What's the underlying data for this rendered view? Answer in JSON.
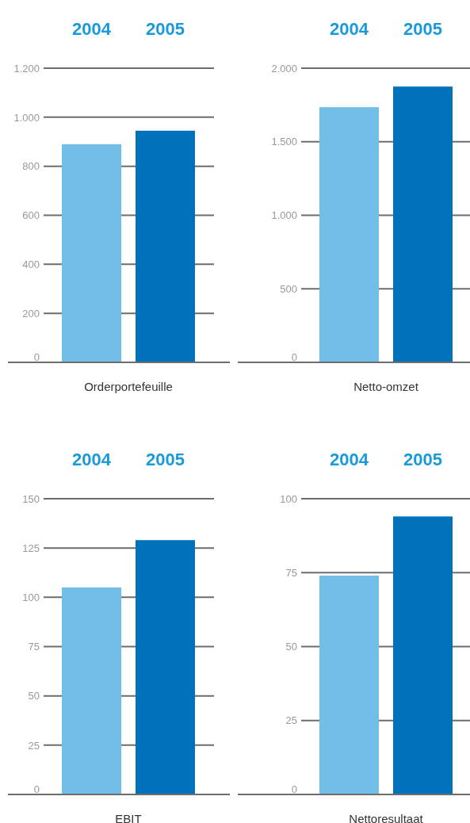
{
  "chart_data": [
    {
      "type": "bar",
      "xlabel": "Orderportefeuille",
      "categories": [
        "2004",
        "2005"
      ],
      "values": [
        890,
        945
      ],
      "colors": [
        "#72bee9",
        "#0071bb"
      ],
      "ylim": [
        0,
        1200
      ],
      "yticks": [
        {
          "value": 0,
          "label": "0"
        },
        {
          "value": 200,
          "label": "200"
        },
        {
          "value": 400,
          "label": "400"
        },
        {
          "value": 600,
          "label": "600"
        },
        {
          "value": 800,
          "label": "800"
        },
        {
          "value": 1000,
          "label": "1.000"
        },
        {
          "value": 1200,
          "label": "1.200"
        }
      ],
      "grid": "y"
    },
    {
      "type": "bar",
      "xlabel": "Netto-omzet",
      "categories": [
        "2004",
        "2005"
      ],
      "values": [
        1735,
        1875
      ],
      "colors": [
        "#72bee9",
        "#0071bb"
      ],
      "ylim": [
        0,
        2000
      ],
      "yticks": [
        {
          "value": 0,
          "label": "0"
        },
        {
          "value": 500,
          "label": "500"
        },
        {
          "value": 1000,
          "label": "1.000"
        },
        {
          "value": 1500,
          "label": "1.500"
        },
        {
          "value": 2000,
          "label": "2.000"
        }
      ],
      "grid": "y"
    },
    {
      "type": "bar",
      "xlabel": "EBIT",
      "categories": [
        "2004",
        "2005"
      ],
      "values": [
        105,
        129
      ],
      "colors": [
        "#72bee9",
        "#0071bb"
      ],
      "ylim": [
        0,
        150
      ],
      "yticks": [
        0,
        25,
        50,
        75,
        100,
        125,
        150
      ],
      "grid": "y"
    },
    {
      "type": "bar",
      "xlabel": "Nettoresultaat",
      "categories": [
        "2004",
        "2005"
      ],
      "values": [
        74,
        94
      ],
      "colors": [
        "#72bee9",
        "#0071bb"
      ],
      "ylim": [
        0,
        100
      ],
      "yticks": [
        0,
        25,
        50,
        75,
        100
      ],
      "grid": "y"
    }
  ]
}
